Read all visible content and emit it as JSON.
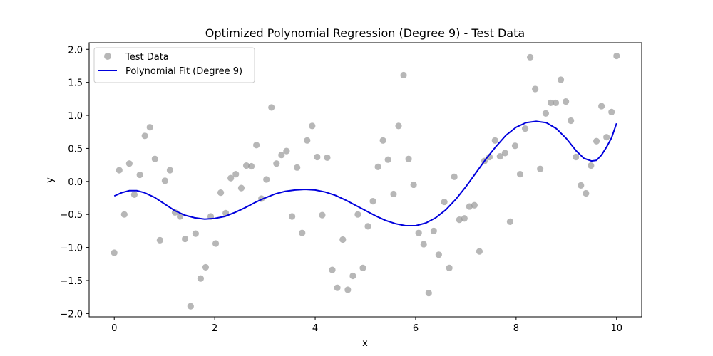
{
  "chart_data": {
    "type": "scatter",
    "title": "Optimized Polynomial Regression (Degree 9) - Test Data",
    "xlabel": "x",
    "ylabel": "y",
    "xlim": [
      -0.5,
      10.5
    ],
    "ylim": [
      -2.05,
      2.1
    ],
    "xticks": [
      0,
      2,
      4,
      6,
      8,
      10
    ],
    "yticks": [
      -2.0,
      -1.5,
      -1.0,
      -0.5,
      0.0,
      0.5,
      1.0,
      1.5,
      2.0
    ],
    "xtick_labels": [
      "0",
      "2",
      "4",
      "6",
      "8",
      "10"
    ],
    "ytick_labels": [
      "−2.0",
      "−1.5",
      "−1.0",
      "−0.5",
      "0.0",
      "0.5",
      "1.0",
      "1.5",
      "2.0"
    ],
    "grid": false,
    "legend_position": "upper-left",
    "series": [
      {
        "name": "Test Data",
        "kind": "scatter",
        "color": "#999999",
        "points": [
          [
            0.0,
            -1.08
          ],
          [
            0.1,
            0.17
          ],
          [
            0.2,
            -0.5
          ],
          [
            0.3,
            0.27
          ],
          [
            0.4,
            -0.2
          ],
          [
            0.51,
            0.1
          ],
          [
            0.61,
            0.69
          ],
          [
            0.71,
            0.82
          ],
          [
            0.81,
            0.34
          ],
          [
            0.91,
            -0.89
          ],
          [
            1.01,
            0.01
          ],
          [
            1.11,
            0.17
          ],
          [
            1.21,
            -0.47
          ],
          [
            1.31,
            -0.53
          ],
          [
            1.41,
            -0.87
          ],
          [
            1.52,
            -1.89
          ],
          [
            1.62,
            -0.79
          ],
          [
            1.72,
            -1.47
          ],
          [
            1.82,
            -1.3
          ],
          [
            1.92,
            -0.53
          ],
          [
            2.02,
            -0.94
          ],
          [
            2.12,
            -0.17
          ],
          [
            2.22,
            -0.48
          ],
          [
            2.32,
            0.05
          ],
          [
            2.42,
            0.11
          ],
          [
            2.53,
            -0.1
          ],
          [
            2.63,
            0.24
          ],
          [
            2.73,
            0.23
          ],
          [
            2.83,
            0.55
          ],
          [
            2.93,
            -0.26
          ],
          [
            3.03,
            0.03
          ],
          [
            3.13,
            1.12
          ],
          [
            3.23,
            0.27
          ],
          [
            3.33,
            0.4
          ],
          [
            3.43,
            0.46
          ],
          [
            3.54,
            -0.53
          ],
          [
            3.64,
            0.21
          ],
          [
            3.74,
            -0.78
          ],
          [
            3.84,
            0.62
          ],
          [
            3.94,
            0.84
          ],
          [
            4.04,
            0.37
          ],
          [
            4.14,
            -0.51
          ],
          [
            4.24,
            0.36
          ],
          [
            4.34,
            -1.34
          ],
          [
            4.44,
            -1.61
          ],
          [
            4.55,
            -0.88
          ],
          [
            4.65,
            -1.64
          ],
          [
            4.75,
            -1.43
          ],
          [
            4.85,
            -0.5
          ],
          [
            4.95,
            -1.31
          ],
          [
            5.05,
            -0.68
          ],
          [
            5.15,
            -0.3
          ],
          [
            5.25,
            0.22
          ],
          [
            5.35,
            0.62
          ],
          [
            5.45,
            0.33
          ],
          [
            5.56,
            -0.19
          ],
          [
            5.66,
            0.84
          ],
          [
            5.76,
            1.61
          ],
          [
            5.86,
            0.34
          ],
          [
            5.96,
            -0.05
          ],
          [
            6.06,
            -0.78
          ],
          [
            6.16,
            -0.95
          ],
          [
            6.26,
            -1.69
          ],
          [
            6.36,
            -0.75
          ],
          [
            6.46,
            -1.11
          ],
          [
            6.57,
            -0.31
          ],
          [
            6.67,
            -1.31
          ],
          [
            6.77,
            0.07
          ],
          [
            6.87,
            -0.58
          ],
          [
            6.97,
            -0.56
          ],
          [
            7.07,
            -0.38
          ],
          [
            7.17,
            -0.36
          ],
          [
            7.27,
            -1.06
          ],
          [
            7.37,
            0.31
          ],
          [
            7.47,
            0.37
          ],
          [
            7.58,
            0.62
          ],
          [
            7.68,
            0.38
          ],
          [
            7.78,
            0.43
          ],
          [
            7.88,
            -0.61
          ],
          [
            7.98,
            0.54
          ],
          [
            8.08,
            0.11
          ],
          [
            8.18,
            0.8
          ],
          [
            8.28,
            1.88
          ],
          [
            8.38,
            1.4
          ],
          [
            8.48,
            0.19
          ],
          [
            8.59,
            1.03
          ],
          [
            8.69,
            1.19
          ],
          [
            8.79,
            1.19
          ],
          [
            8.89,
            1.54
          ],
          [
            8.99,
            1.21
          ],
          [
            9.09,
            0.92
          ],
          [
            9.19,
            0.37
          ],
          [
            9.29,
            -0.06
          ],
          [
            9.39,
            -0.18
          ],
          [
            9.49,
            0.24
          ],
          [
            9.6,
            0.61
          ],
          [
            9.7,
            1.14
          ],
          [
            9.8,
            0.67
          ],
          [
            9.9,
            1.05
          ],
          [
            10.0,
            1.9
          ]
        ]
      },
      {
        "name": "Polynomial Fit (Degree 9)",
        "kind": "line",
        "color": "#0000dd",
        "points": [
          [
            0.0,
            -0.22
          ],
          [
            0.15,
            -0.17
          ],
          [
            0.3,
            -0.14
          ],
          [
            0.45,
            -0.14
          ],
          [
            0.6,
            -0.17
          ],
          [
            0.8,
            -0.24
          ],
          [
            1.0,
            -0.34
          ],
          [
            1.2,
            -0.44
          ],
          [
            1.4,
            -0.51
          ],
          [
            1.6,
            -0.55
          ],
          [
            1.8,
            -0.57
          ],
          [
            2.0,
            -0.56
          ],
          [
            2.2,
            -0.53
          ],
          [
            2.4,
            -0.47
          ],
          [
            2.6,
            -0.4
          ],
          [
            2.8,
            -0.32
          ],
          [
            3.0,
            -0.25
          ],
          [
            3.2,
            -0.19
          ],
          [
            3.4,
            -0.15
          ],
          [
            3.6,
            -0.13
          ],
          [
            3.8,
            -0.12
          ],
          [
            4.0,
            -0.13
          ],
          [
            4.2,
            -0.16
          ],
          [
            4.4,
            -0.21
          ],
          [
            4.6,
            -0.28
          ],
          [
            4.8,
            -0.36
          ],
          [
            5.0,
            -0.44
          ],
          [
            5.2,
            -0.52
          ],
          [
            5.4,
            -0.59
          ],
          [
            5.6,
            -0.64
          ],
          [
            5.8,
            -0.67
          ],
          [
            6.0,
            -0.67
          ],
          [
            6.2,
            -0.63
          ],
          [
            6.4,
            -0.55
          ],
          [
            6.6,
            -0.43
          ],
          [
            6.8,
            -0.27
          ],
          [
            7.0,
            -0.08
          ],
          [
            7.2,
            0.13
          ],
          [
            7.4,
            0.34
          ],
          [
            7.6,
            0.53
          ],
          [
            7.8,
            0.7
          ],
          [
            8.0,
            0.82
          ],
          [
            8.2,
            0.89
          ],
          [
            8.4,
            0.91
          ],
          [
            8.6,
            0.89
          ],
          [
            8.8,
            0.8
          ],
          [
            9.0,
            0.65
          ],
          [
            9.2,
            0.46
          ],
          [
            9.35,
            0.35
          ],
          [
            9.5,
            0.31
          ],
          [
            9.6,
            0.32
          ],
          [
            9.7,
            0.4
          ],
          [
            9.8,
            0.52
          ],
          [
            9.9,
            0.66
          ],
          [
            10.0,
            0.88
          ]
        ]
      }
    ]
  }
}
